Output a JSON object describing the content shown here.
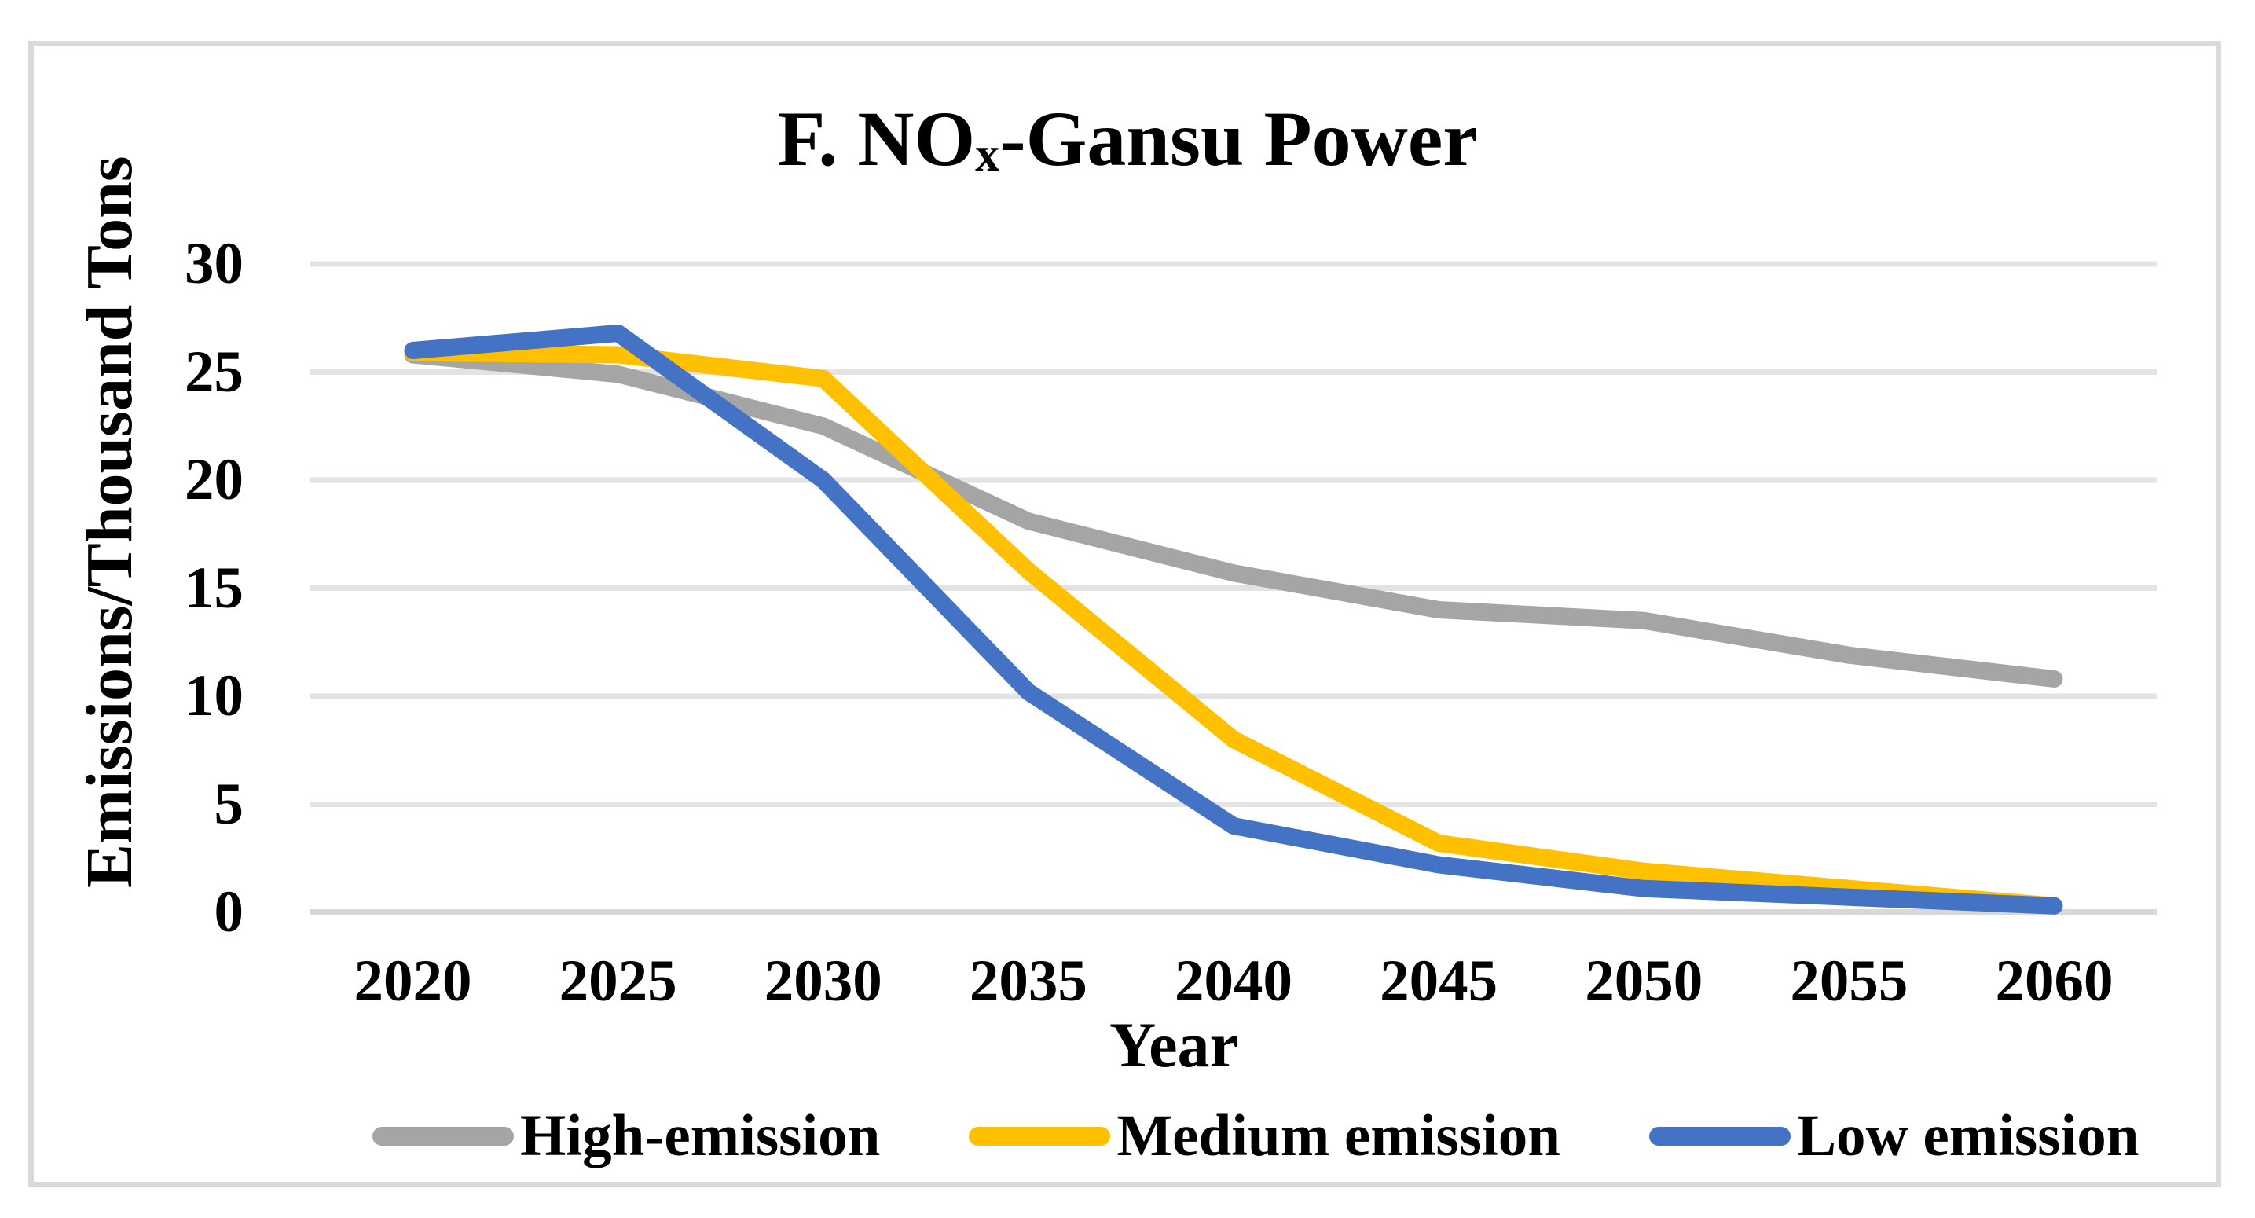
{
  "figure": {
    "title": {
      "prefix": "F. NO",
      "subscript": "x",
      "suffix": "-Gansu Power"
    }
  },
  "chart_data": {
    "type": "line",
    "title": "F. NOx-Gansu Power",
    "xlabel": "Year",
    "ylabel": "Emissions/Thousand Tons",
    "categories": [
      "2020",
      "2025",
      "2030",
      "2035",
      "2040",
      "2045",
      "2050",
      "2055",
      "2060"
    ],
    "series": [
      {
        "name": "High-emission",
        "color": "#A5A5A5",
        "values": [
          25.8,
          24.9,
          22.5,
          18.1,
          15.7,
          14.0,
          13.5,
          11.9,
          10.8
        ]
      },
      {
        "name": "Medium emission",
        "color": "#FFC000",
        "values": [
          25.9,
          25.8,
          24.7,
          15.8,
          8.0,
          3.2,
          1.9,
          1.1,
          0.3
        ]
      },
      {
        "name": "Low emission",
        "color": "#4472C4",
        "values": [
          26.0,
          26.8,
          20.0,
          10.2,
          4.0,
          2.2,
          1.1,
          0.7,
          0.3
        ]
      }
    ],
    "ylim": [
      0,
      30
    ],
    "y_ticks": [
      30,
      25,
      20,
      15,
      10,
      5,
      0
    ],
    "grid": "horizontal",
    "legend_position": "bottom",
    "line_width": 22
  },
  "colors": {
    "background": "#FFFFFF",
    "text": "#000000",
    "gridline": "#E3E3E3",
    "zero_line": "#D8D8D8",
    "frame_border": "#D9D9D9"
  }
}
